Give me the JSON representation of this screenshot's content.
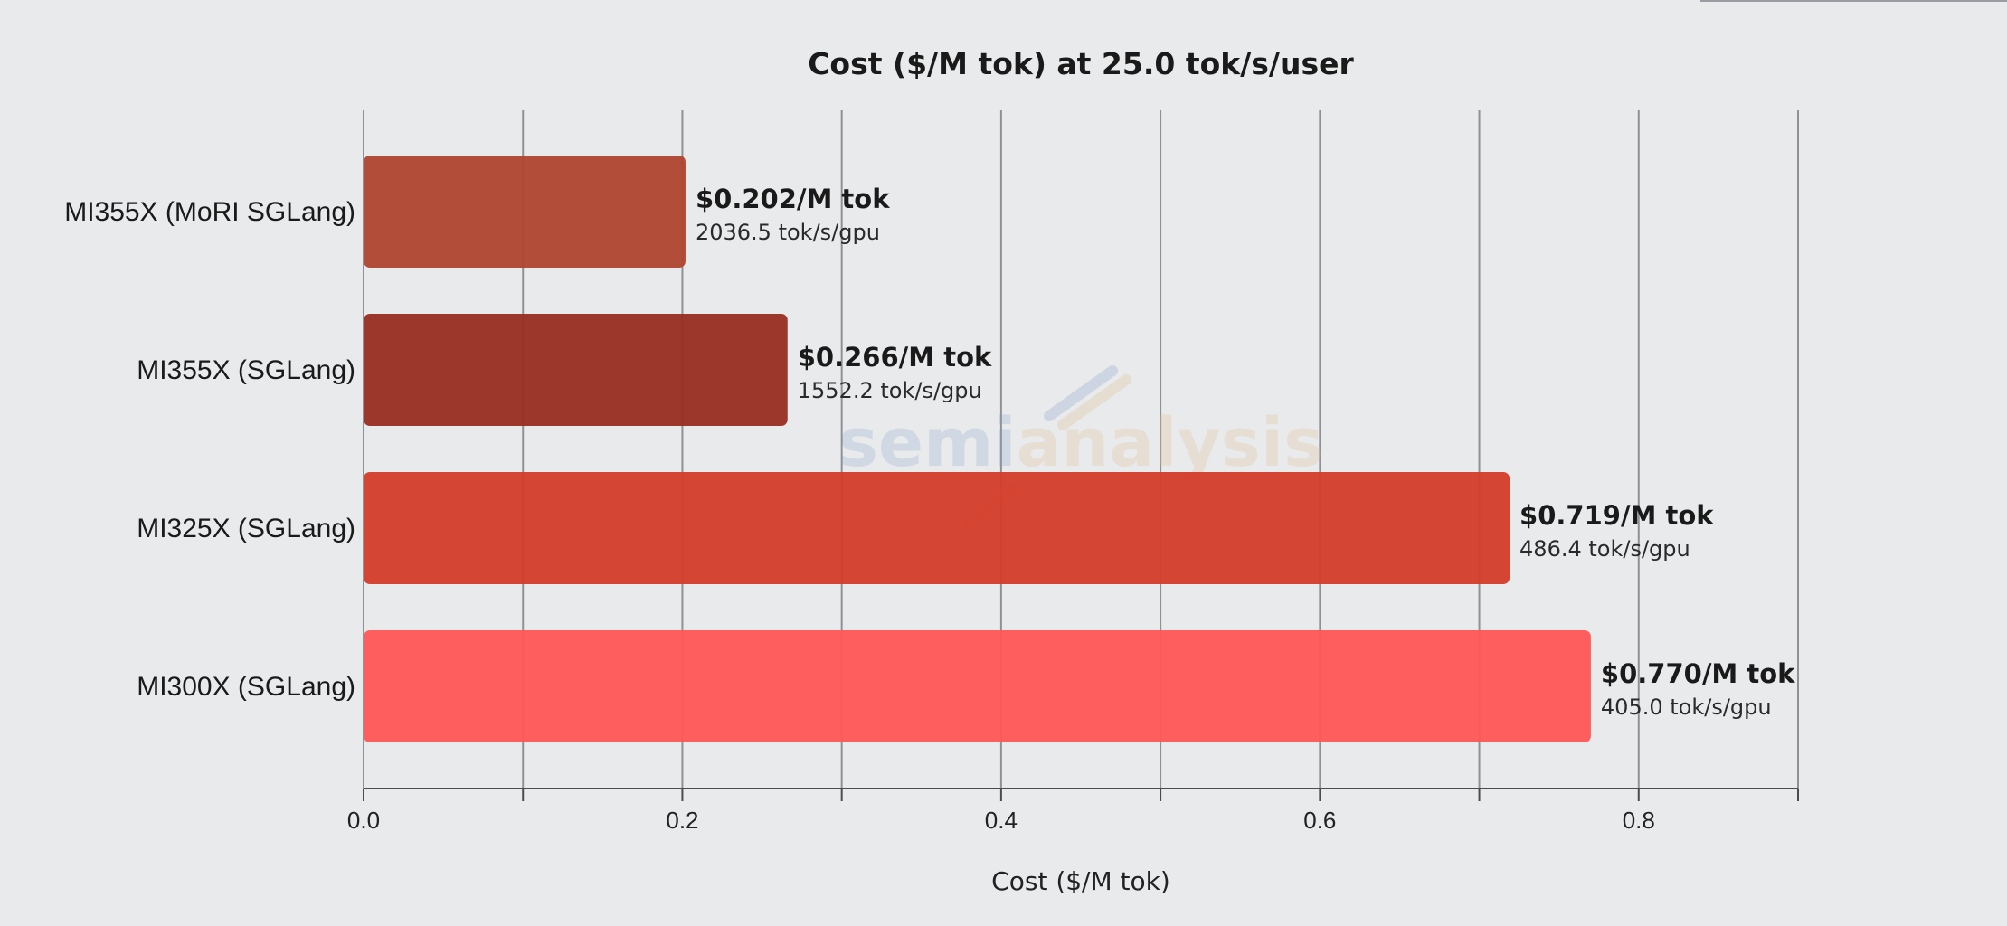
{
  "chart_data": {
    "type": "bar",
    "orientation": "horizontal",
    "title": "Cost ($/M tok) at 25.0 tok/s/user",
    "xlabel": "Cost ($/M tok)",
    "ylabel": "",
    "xlim": [
      0,
      0.9
    ],
    "xticks": [
      0.0,
      0.2,
      0.4,
      0.6,
      0.8
    ],
    "xtick_labels": [
      "0.0",
      "0.2",
      "0.4",
      "0.6",
      "0.8"
    ],
    "grid_step": 0.1,
    "grid": true,
    "watermark": "semianalysis",
    "categories": [
      "MI355X (MoRI SGLang)",
      "MI355X (SGLang)",
      "MI325X (SGLang)",
      "MI300X (SGLang)"
    ],
    "values": [
      0.202,
      0.266,
      0.719,
      0.77
    ],
    "value_labels": [
      "$0.202/M tok",
      "$0.266/M tok",
      "$0.719/M tok",
      "$0.770/M tok"
    ],
    "sub_labels": [
      "2036.5 tok/s/gpu",
      "1552.2 tok/s/gpu",
      "486.4 tok/s/gpu",
      "405.0 tok/s/gpu"
    ],
    "colors": [
      "#b04632",
      "#992f22",
      "#d43d2b",
      "#ff5757"
    ]
  }
}
